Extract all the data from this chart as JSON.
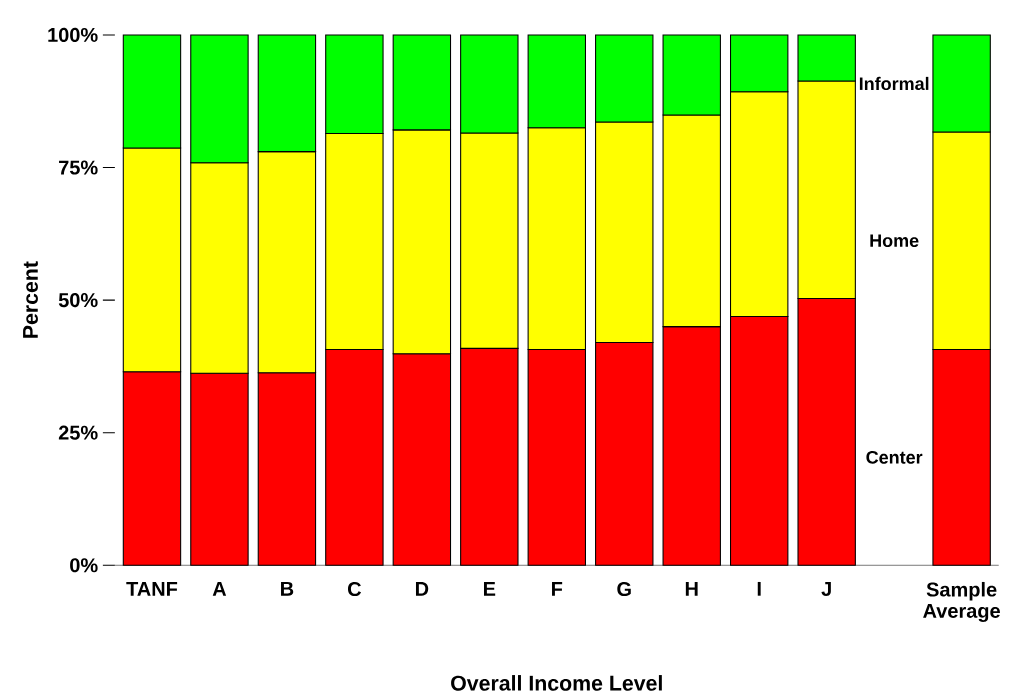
{
  "chart_data": {
    "type": "bar",
    "stacked": true,
    "xlabel": "Overall Income Level",
    "ylabel": "Percent",
    "categories": [
      "TANF",
      "A",
      "B",
      "C",
      "D",
      "E",
      "F",
      "G",
      "H",
      "I",
      "J",
      "Sample Average"
    ],
    "series": [
      {
        "name": "Center",
        "color": "#ff0000",
        "values": [
          36.5,
          36.2,
          36.3,
          40.7,
          39.9,
          40.9,
          40.7,
          42.0,
          45.0,
          46.9,
          50.3,
          40.7
        ]
      },
      {
        "name": "Home",
        "color": "#ffff00",
        "values": [
          42.2,
          39.7,
          41.7,
          40.7,
          42.2,
          40.6,
          41.8,
          41.6,
          39.9,
          42.4,
          41.0,
          41.0
        ]
      },
      {
        "name": "Informal",
        "color": "#00ff00",
        "values": [
          21.3,
          24.1,
          22.0,
          18.6,
          17.9,
          18.5,
          17.5,
          16.4,
          15.1,
          10.7,
          8.7,
          18.3
        ]
      }
    ],
    "ylim": [
      0,
      100
    ],
    "yticks": [
      {
        "value": 0,
        "label": "0%"
      },
      {
        "value": 25,
        "label": "25%"
      },
      {
        "value": 50,
        "label": "50%"
      },
      {
        "value": 75,
        "label": "75%"
      },
      {
        "value": 100,
        "label": "100%"
      }
    ]
  }
}
